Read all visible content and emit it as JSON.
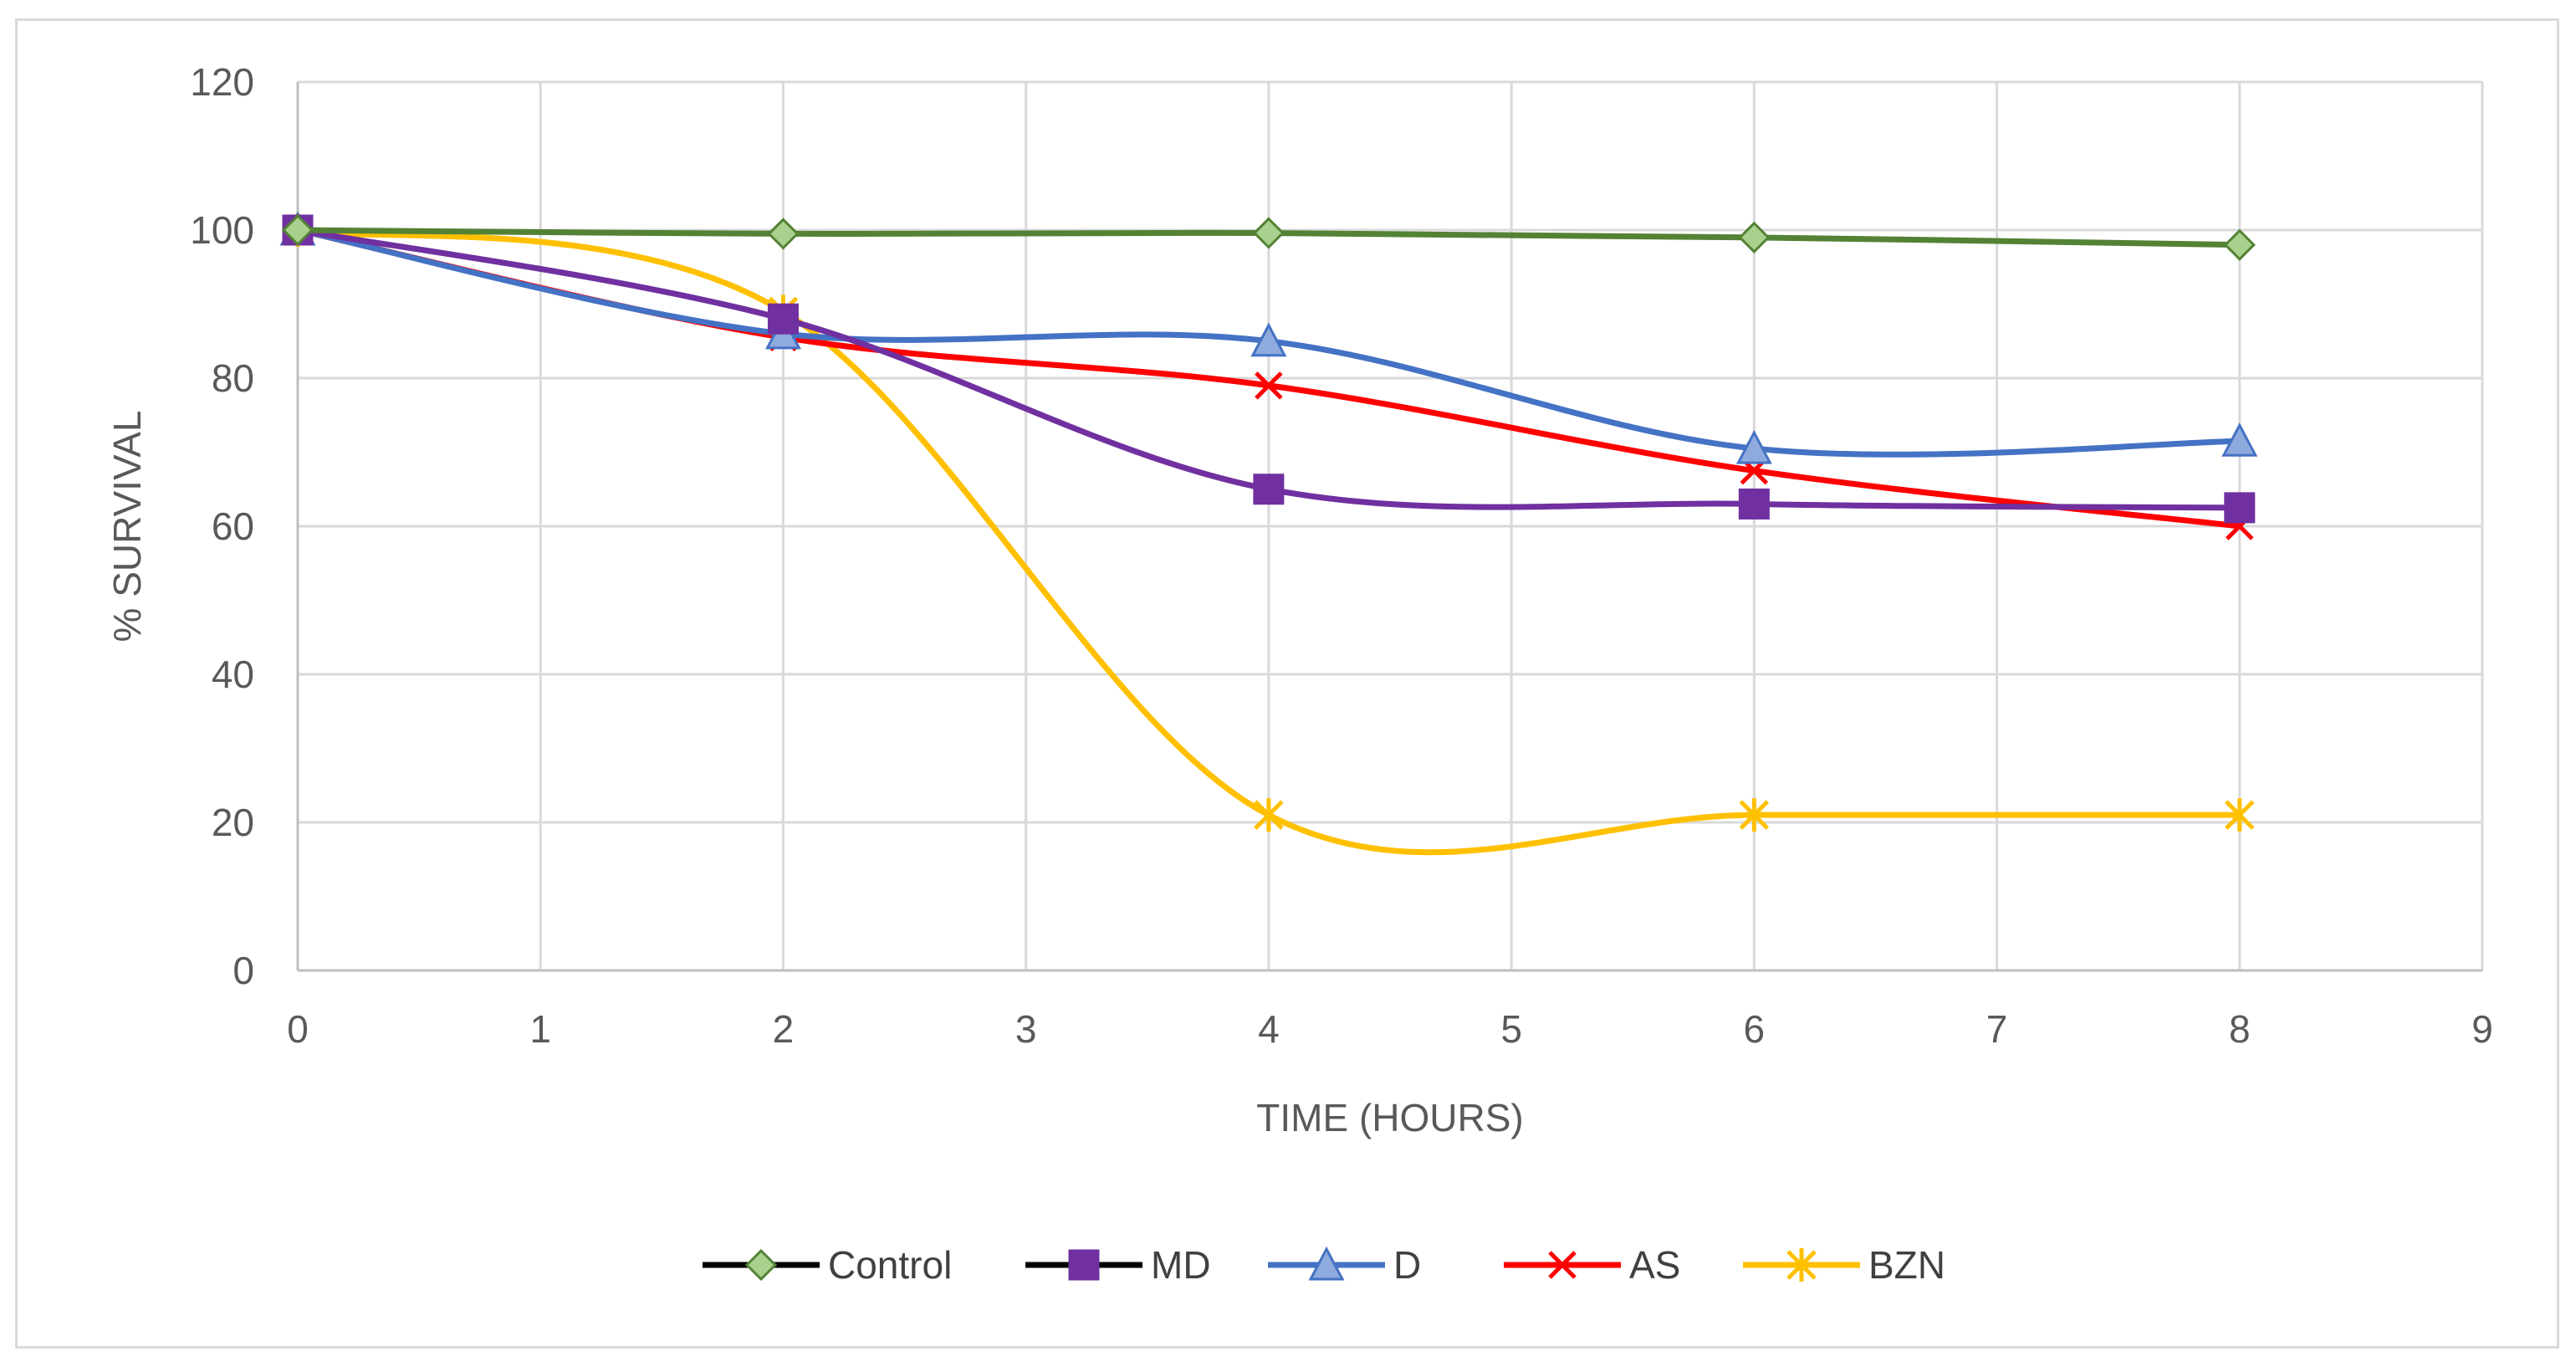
{
  "chart_data": {
    "type": "line",
    "xlabel": "TIME (HOURS)",
    "ylabel": "% SURVIVAL",
    "xlim": [
      0,
      9
    ],
    "ylim": [
      0,
      120
    ],
    "x_ticks": [
      0,
      1,
      2,
      3,
      4,
      5,
      6,
      7,
      8,
      9
    ],
    "y_ticks": [
      0,
      20,
      40,
      60,
      80,
      100,
      120
    ],
    "grid": true,
    "smooth": true,
    "legend_position": "bottom",
    "series": [
      {
        "name": "Control",
        "x": [
          0,
          2,
          4,
          6,
          8
        ],
        "y": [
          100,
          99.5,
          99.6,
          99,
          98
        ],
        "color": "#548235",
        "marker": "diamond",
        "marker_fill": "#a9d18e",
        "legend_line": "#000000"
      },
      {
        "name": "MD",
        "x": [
          0,
          2,
          4,
          6,
          8
        ],
        "y": [
          100,
          88,
          65,
          63,
          62.5
        ],
        "color": "#7030a0",
        "marker": "square",
        "marker_fill": "#7030a0",
        "legend_line": "#000000"
      },
      {
        "name": "D",
        "x": [
          0,
          2,
          4,
          6,
          8
        ],
        "y": [
          100,
          86,
          85,
          70.5,
          71.5
        ],
        "color": "#4472c4",
        "marker": "triangle",
        "marker_fill": "#8faadc",
        "legend_line": "#4472c4"
      },
      {
        "name": "AS",
        "x": [
          0,
          2,
          4,
          6,
          8
        ],
        "y": [
          100,
          85.5,
          79,
          67.5,
          60
        ],
        "color": "#ff0000",
        "marker": "x",
        "marker_fill": "#ff0000",
        "legend_line": "#ff0000"
      },
      {
        "name": "BZN",
        "x": [
          0,
          2,
          4,
          6,
          8
        ],
        "y": [
          100,
          89,
          21,
          21,
          21
        ],
        "color": "#ffc000",
        "marker": "star",
        "marker_fill": "#ffc000",
        "legend_line": "#ffc000"
      }
    ]
  }
}
